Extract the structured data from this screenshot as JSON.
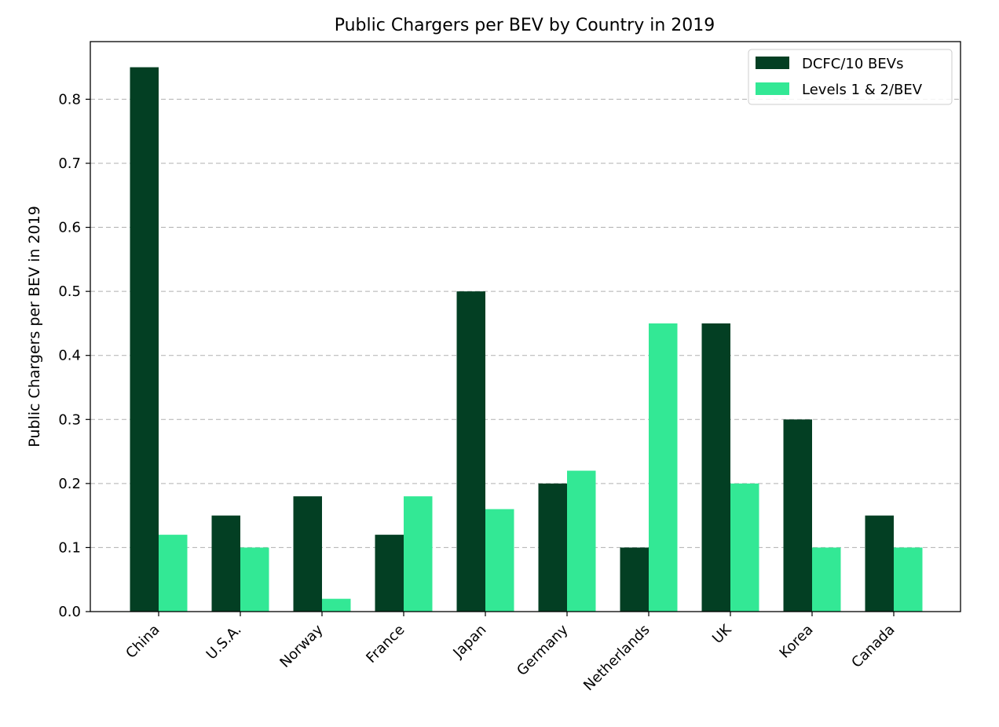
{
  "chart_data": {
    "type": "bar",
    "title": "Public Chargers per BEV by Country in 2019",
    "xlabel": "",
    "ylabel": "Public Chargers per BEV in 2019",
    "categories": [
      "China",
      "U.S.A.",
      "Norway",
      "France",
      "Japan",
      "Germany",
      "Netherlands",
      "UK",
      "Korea",
      "Canada"
    ],
    "series": [
      {
        "name": "DCFC/10 BEVs",
        "color": "#033f23",
        "values": [
          0.85,
          0.15,
          0.18,
          0.12,
          0.5,
          0.2,
          0.1,
          0.45,
          0.3,
          0.15
        ]
      },
      {
        "name": "Levels 1 & 2/BEV",
        "color": "#33e895",
        "values": [
          0.12,
          0.1,
          0.02,
          0.18,
          0.16,
          0.22,
          0.45,
          0.2,
          0.1,
          0.1
        ]
      }
    ],
    "ylim": [
      0,
      0.89
    ],
    "yticks": [
      "0.0",
      "0.1",
      "0.2",
      "0.3",
      "0.4",
      "0.5",
      "0.6",
      "0.7",
      "0.8"
    ],
    "grid": "y-dashed",
    "legend_position": "top-right"
  }
}
